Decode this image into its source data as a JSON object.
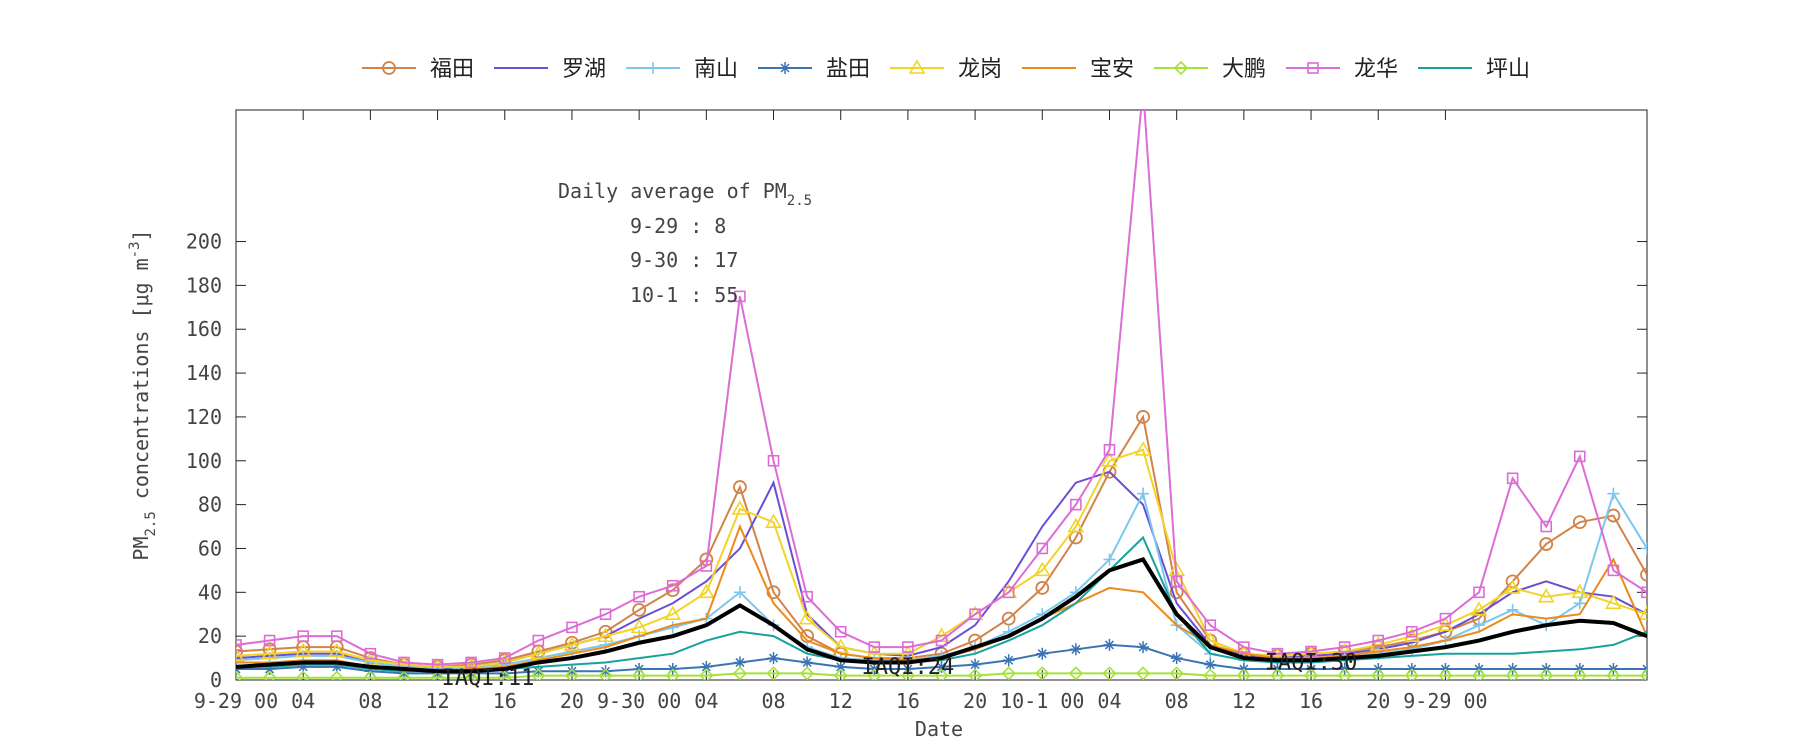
{
  "chart_data": {
    "type": "line",
    "xlabel": "Date",
    "ylabel": {
      "main": "PM",
      "sub": "2.5",
      "rest": " concentrations [μg m",
      "sup": "-3",
      "close": "]"
    },
    "ylim": [
      0,
      260
    ],
    "yticks": [
      0,
      20,
      40,
      60,
      80,
      100,
      120,
      140,
      160,
      180,
      200
    ],
    "xlim": [
      0,
      84
    ],
    "xticks": [
      {
        "x": 0,
        "label": "9-29 00"
      },
      {
        "x": 4,
        "label": "04"
      },
      {
        "x": 8,
        "label": "08"
      },
      {
        "x": 12,
        "label": "12"
      },
      {
        "x": 16,
        "label": "16"
      },
      {
        "x": 20,
        "label": "20"
      },
      {
        "x": 24,
        "label": "9-30 00"
      },
      {
        "x": 28,
        "label": "04"
      },
      {
        "x": 32,
        "label": "08"
      },
      {
        "x": 36,
        "label": "12"
      },
      {
        "x": 40,
        "label": "16"
      },
      {
        "x": 44,
        "label": "20"
      },
      {
        "x": 48,
        "label": "10-1 00"
      },
      {
        "x": 52,
        "label": "04"
      },
      {
        "x": 56,
        "label": "08"
      },
      {
        "x": 60,
        "label": "12"
      },
      {
        "x": 64,
        "label": "16"
      },
      {
        "x": 68,
        "label": "20"
      },
      {
        "x": 72,
        "label": "9-29 00"
      }
    ],
    "legend_position": "top",
    "annotation": {
      "title_main": "Daily average of PM",
      "title_sub": "2.5",
      "lines": [
        "9-29 : 8",
        "9-30 : 17",
        "10-1 : 55"
      ]
    },
    "iaqi_labels": [
      {
        "x": 15,
        "y": 1,
        "text": "IAQI:11"
      },
      {
        "x": 40,
        "y": 6,
        "text": "IAQI:24"
      },
      {
        "x": 64,
        "y": 8,
        "text": "IAQI:30"
      }
    ],
    "x": [
      0,
      2,
      4,
      6,
      8,
      10,
      12,
      14,
      16,
      18,
      20,
      22,
      24,
      26,
      28,
      30,
      32,
      34,
      36,
      38,
      40,
      42,
      44,
      46,
      48,
      50,
      52,
      54,
      56,
      58,
      60,
      62,
      64,
      66,
      68,
      70,
      72,
      74,
      76,
      78,
      80,
      82,
      84
    ],
    "series": [
      {
        "name": "福田",
        "color": "#d2834a",
        "marker": "circle",
        "values": [
          13,
          14,
          15,
          15,
          10,
          7,
          6,
          7,
          9,
          13,
          17,
          22,
          32,
          41,
          55,
          88,
          40,
          20,
          12,
          10,
          10,
          12,
          18,
          28,
          42,
          65,
          95,
          120,
          40,
          18,
          12,
          11,
          12,
          13,
          15,
          18,
          22,
          28,
          45,
          62,
          72,
          75,
          48
        ]
      },
      {
        "name": "罗湖",
        "color": "#6a4fd4",
        "marker": "none",
        "values": [
          10,
          11,
          12,
          12,
          8,
          6,
          5,
          6,
          8,
          12,
          16,
          20,
          28,
          35,
          45,
          60,
          90,
          30,
          15,
          12,
          11,
          15,
          25,
          45,
          70,
          90,
          95,
          80,
          35,
          16,
          11,
          10,
          11,
          12,
          14,
          17,
          22,
          30,
          40,
          45,
          40,
          38,
          30
        ]
      },
      {
        "name": "南山",
        "color": "#7cc7ee",
        "marker": "plus",
        "values": [
          9,
          10,
          11,
          11,
          8,
          6,
          5,
          6,
          7,
          10,
          13,
          16,
          20,
          24,
          28,
          40,
          25,
          15,
          10,
          9,
          9,
          11,
          15,
          22,
          30,
          40,
          55,
          85,
          25,
          12,
          9,
          8,
          9,
          10,
          12,
          14,
          18,
          25,
          32,
          25,
          35,
          85,
          60
        ]
      },
      {
        "name": "盐田",
        "color": "#3a74b4",
        "marker": "star",
        "values": [
          5,
          5,
          6,
          6,
          4,
          3,
          3,
          3,
          3,
          4,
          4,
          4,
          5,
          5,
          6,
          8,
          10,
          8,
          6,
          5,
          5,
          6,
          7,
          9,
          12,
          14,
          16,
          15,
          10,
          7,
          5,
          5,
          5,
          5,
          5,
          5,
          5,
          5,
          5,
          5,
          5,
          5,
          5
        ]
      },
      {
        "name": "龙岗",
        "color": "#f2d427",
        "marker": "triangle",
        "values": [
          11,
          12,
          13,
          13,
          9,
          7,
          6,
          6,
          8,
          12,
          16,
          20,
          24,
          30,
          40,
          78,
          72,
          28,
          15,
          12,
          12,
          20,
          30,
          40,
          50,
          70,
          100,
          105,
          50,
          18,
          12,
          11,
          12,
          13,
          16,
          20,
          25,
          32,
          42,
          38,
          40,
          35,
          30
        ]
      },
      {
        "name": "宝安",
        "color": "#ee8a1a",
        "marker": "none",
        "values": [
          8,
          8,
          9,
          9,
          6,
          5,
          4,
          5,
          6,
          9,
          12,
          15,
          20,
          25,
          28,
          70,
          35,
          18,
          12,
          10,
          9,
          10,
          14,
          20,
          28,
          35,
          42,
          40,
          25,
          16,
          12,
          10,
          10,
          11,
          13,
          15,
          18,
          22,
          30,
          28,
          30,
          55,
          20
        ]
      },
      {
        "name": "大鹏",
        "color": "#a4e23a",
        "marker": "diamond",
        "values": [
          1,
          1,
          1,
          1,
          1,
          1,
          1,
          1,
          1,
          2,
          2,
          2,
          2,
          2,
          2,
          3,
          3,
          3,
          2,
          2,
          2,
          2,
          2,
          3,
          3,
          3,
          3,
          3,
          3,
          2,
          2,
          2,
          2,
          2,
          2,
          2,
          2,
          2,
          2,
          2,
          2,
          2,
          2
        ]
      },
      {
        "name": "龙华",
        "color": "#dd6cd6",
        "marker": "square",
        "values": [
          16,
          18,
          20,
          20,
          12,
          8,
          7,
          8,
          10,
          18,
          24,
          30,
          38,
          43,
          52,
          175,
          100,
          38,
          22,
          15,
          15,
          18,
          30,
          40,
          60,
          80,
          105,
          270,
          45,
          25,
          15,
          12,
          13,
          15,
          18,
          22,
          28,
          40,
          92,
          70,
          102,
          50,
          40
        ]
      },
      {
        "name": "坪山",
        "color": "#17a39c",
        "marker": "none",
        "values": [
          6,
          6,
          7,
          7,
          5,
          4,
          4,
          4,
          5,
          6,
          7,
          8,
          10,
          12,
          18,
          22,
          20,
          12,
          9,
          8,
          8,
          9,
          12,
          18,
          25,
          35,
          50,
          65,
          30,
          12,
          9,
          8,
          8,
          9,
          10,
          11,
          12,
          12,
          12,
          13,
          14,
          16,
          22
        ]
      }
    ],
    "mean_line": {
      "color": "#000000",
      "values": [
        6,
        7,
        8,
        8,
        6,
        5,
        4,
        4,
        5,
        8,
        10,
        13,
        17,
        20,
        25,
        34,
        25,
        14,
        9,
        8,
        8,
        10,
        15,
        20,
        28,
        38,
        50,
        55,
        30,
        15,
        10,
        9,
        9,
        10,
        11,
        13,
        15,
        18,
        22,
        25,
        27,
        26,
        20
      ]
    }
  }
}
